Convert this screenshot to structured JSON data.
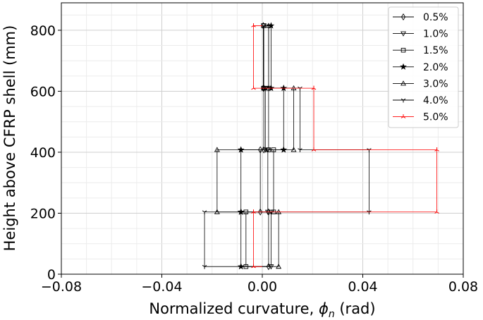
{
  "chart_data": {
    "type": "line",
    "title": "",
    "xlabel": "Normalized curvature, ϕn (rad)",
    "xlabel_parts": [
      "Normalized curvature, ",
      "ϕ",
      "n",
      " (rad)"
    ],
    "ylabel": "Height above CFRP shell (mm)",
    "xlim": [
      -0.08,
      0.08
    ],
    "ylim": [
      0,
      890
    ],
    "x_ticks": [
      -0.08,
      -0.04,
      0.0,
      0.04,
      0.08
    ],
    "x_tick_labels": [
      "−0.08",
      "−0.04",
      "0.00",
      "0.04",
      "0.08"
    ],
    "y_ticks": [
      0,
      200,
      400,
      600,
      800
    ],
    "y_tick_labels": [
      "0",
      "200",
      "400",
      "600",
      "800"
    ],
    "grid": true,
    "legend_position": "top-right",
    "step_breaks": [
      25,
      204,
      408,
      610,
      815
    ],
    "series": [
      {
        "name": "0.5%",
        "marker": "diamond",
        "color": "#000000",
        "values": [
          0.0025,
          -0.0008,
          0.0006,
          0.0004
        ]
      },
      {
        "name": "1.0%",
        "marker": "triangle-down",
        "color": "#000000",
        "values": [
          0.0035,
          0.0022,
          0.0012,
          0.0006
        ]
      },
      {
        "name": "1.5%",
        "marker": "square",
        "color": "#000000",
        "values": [
          -0.0065,
          0.0045,
          0.0025,
          0.0005
        ]
      },
      {
        "name": "2.0%",
        "marker": "star",
        "color": "#000000",
        "values": [
          -0.0085,
          -0.0085,
          0.0085,
          0.0035
        ]
      },
      {
        "name": "3.0%",
        "marker": "triangle-up",
        "color": "#000000",
        "values": [
          0.0065,
          -0.018,
          0.0125,
          0.0025
        ]
      },
      {
        "name": "4.0%",
        "marker": "tri-down",
        "color": "#000000",
        "values": [
          -0.023,
          0.0425,
          0.015,
          0.0025
        ]
      },
      {
        "name": "5.0%",
        "marker": "tri-up",
        "color": "#ff0000",
        "values": [
          -0.0035,
          0.0695,
          0.0205,
          -0.0035
        ]
      }
    ]
  }
}
